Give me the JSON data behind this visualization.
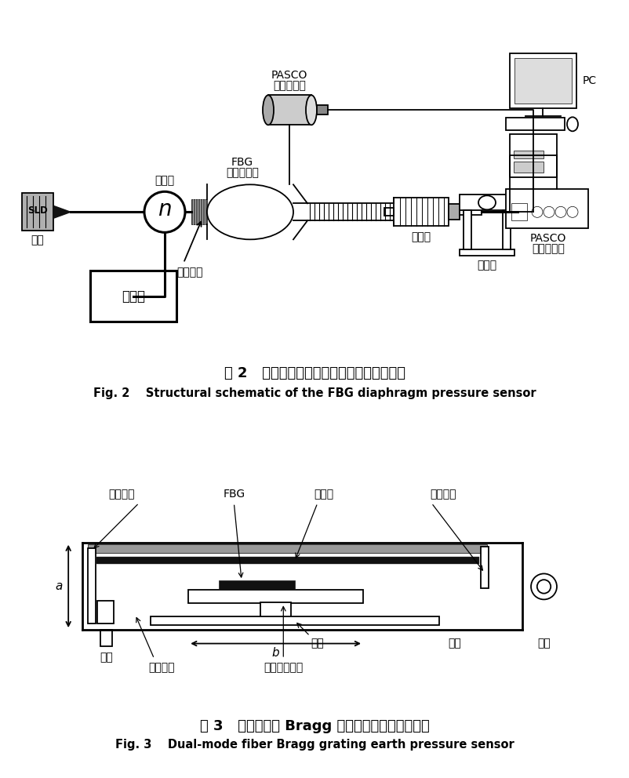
{
  "fig_width": 8.02,
  "fig_height": 9.92,
  "bg_color": "#ffffff",
  "fig2_title_cn": "图 2   膜片式光纤光栅压力传感器结构示意图",
  "fig2_title_en": "Fig. 2    Structural schematic of the FBG diaphragm pressure sensor",
  "fig3_title_cn": "图 3   双膜式光纤 Bragg 光栅土压力传感器原理图",
  "fig3_title_en": "Fig. 3    Dual-mode fiber Bragg grating earth pressure sensor",
  "lc": "#000000"
}
